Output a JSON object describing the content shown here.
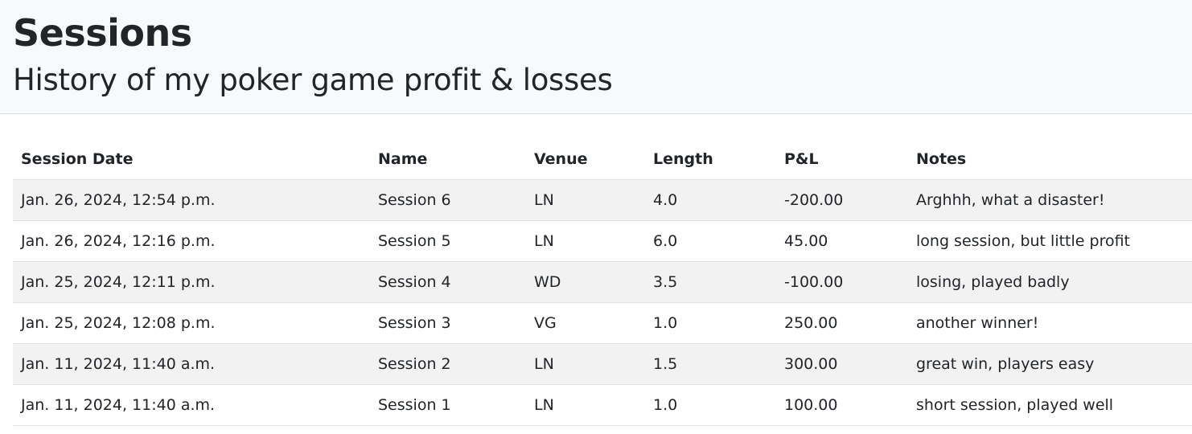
{
  "header": {
    "title": "Sessions",
    "subtitle": "History of my poker game profit & losses"
  },
  "table": {
    "columns": [
      "Session Date",
      "Name",
      "Venue",
      "Length",
      "P&L",
      "Notes"
    ],
    "rows": [
      [
        "Jan. 26, 2024, 12:54 p.m.",
        "Session 6",
        "LN",
        "4.0",
        "-200.00",
        "Arghhh, what a disaster!"
      ],
      [
        "Jan. 26, 2024, 12:16 p.m.",
        "Session 5",
        "LN",
        "6.0",
        "45.00",
        "long session, but little profit"
      ],
      [
        "Jan. 25, 2024, 12:11 p.m.",
        "Session 4",
        "WD",
        "3.5",
        "-100.00",
        "losing, played badly"
      ],
      [
        "Jan. 25, 2024, 12:08 p.m.",
        "Session 3",
        "VG",
        "1.0",
        "250.00",
        "another winner!"
      ],
      [
        "Jan. 11, 2024, 11:40 a.m.",
        "Session 2",
        "LN",
        "1.5",
        "300.00",
        "great win, players easy"
      ],
      [
        "Jan. 11, 2024, 11:40 a.m.",
        "Session 1",
        "LN",
        "1.0",
        "100.00",
        "short session, played well"
      ]
    ]
  },
  "colors": {
    "header_bg": "#f8f9fa",
    "stripe_bg": "#f2f2f2",
    "border": "#dee2e6",
    "text": "#212529"
  }
}
